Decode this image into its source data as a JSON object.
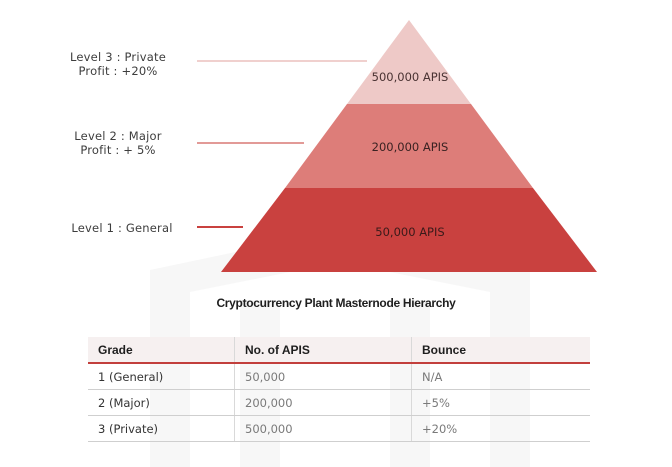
{
  "levels": [
    {
      "label_line1": "Level 3 : Private",
      "label_line2": "Profit : +20%",
      "tier_value": "500,000 APIS",
      "color": "#eec9c7"
    },
    {
      "label_line1": "Level  2 : Major",
      "label_line2": "Profit : + 5%",
      "tier_value": "200,000 APIS",
      "color": "#dd7d79"
    },
    {
      "label_line1": "Level  1 : General",
      "label_line2": "",
      "tier_value": "50,000 APIS",
      "color": "#c9413f"
    }
  ],
  "caption": "Cryptocurrency Plant Masternode Hierarchy",
  "table": {
    "headers": [
      "Grade",
      "No. of APIS",
      "Bounce"
    ],
    "rows": [
      [
        "1 (General)",
        "50,000",
        "N/A"
      ],
      [
        "2 (Major)",
        "200,000",
        "+5%"
      ],
      [
        "3 (Private)",
        "500,000",
        "+20%"
      ]
    ]
  }
}
